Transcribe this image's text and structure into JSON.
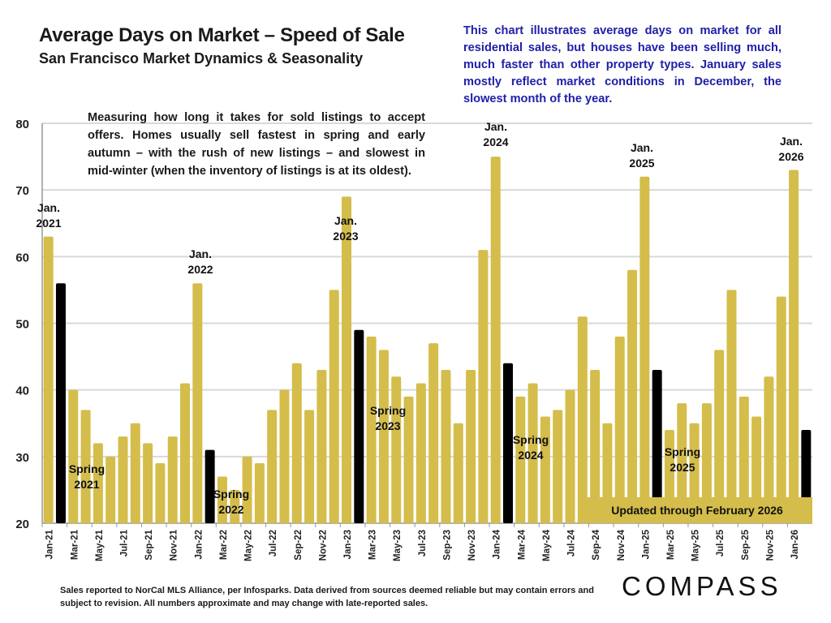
{
  "header": {
    "title": "Average Days on Market – Speed of Sale",
    "subtitle": "San Francisco Market Dynamics & Seasonality",
    "blue_note": "This chart illustrates average days on market for all residential sales, but houses have been selling much, much faster than other property types. January sales mostly reflect market conditions in December, the slowest month of the year.",
    "description": "Measuring how long it takes for sold listings to accept offers. Homes usually sell fastest in spring and early autumn – with the rush of new listings – and slowest in mid-winter (when the inventory of listings is at its oldest)."
  },
  "footer": {
    "source": "Sales reported to NorCal MLS Alliance, per Infosparks. Data derived from sources deemed reliable but may contain errors and subject to revision. All numbers approximate and may change with late-reported sales.",
    "logo": "COMPASS"
  },
  "colors": {
    "bar": "#d4bd4a",
    "highlight": "#000000",
    "note": "#2020a8",
    "grid": "#d9d9d9"
  },
  "chart_data": {
    "type": "bar",
    "title": "Average Days on Market – Speed of Sale",
    "xlabel": "",
    "ylabel": "",
    "ylim": [
      20,
      80
    ],
    "yticks": [
      20,
      30,
      40,
      50,
      60,
      70,
      80
    ],
    "grid": true,
    "categories": [
      "Jan-21",
      "Feb-21",
      "Mar-21",
      "Apr-21",
      "May-21",
      "Jun-21",
      "Jul-21",
      "Aug-21",
      "Sep-21",
      "Oct-21",
      "Nov-21",
      "Dec-21",
      "Jan-22",
      "Feb-22",
      "Mar-22",
      "Apr-22",
      "May-22",
      "Jun-22",
      "Jul-22",
      "Aug-22",
      "Sep-22",
      "Oct-22",
      "Nov-22",
      "Dec-22",
      "Jan-23",
      "Feb-23",
      "Mar-23",
      "Apr-23",
      "May-23",
      "Jun-23",
      "Jul-23",
      "Aug-23",
      "Sep-23",
      "Oct-23",
      "Nov-23",
      "Dec-23",
      "Jan-24",
      "Feb-24",
      "Mar-24",
      "Apr-24",
      "May-24",
      "Jun-24",
      "Jul-24",
      "Aug-24",
      "Sep-24",
      "Oct-24",
      "Nov-24",
      "Dec-24",
      "Jan-25",
      "Feb-25",
      "Mar-25",
      "Apr-25",
      "May-25",
      "Jun-25",
      "Jul-25",
      "Aug-25",
      "Sep-25",
      "Oct-25",
      "Nov-25",
      "Dec-25",
      "Jan-26",
      "Feb-26"
    ],
    "values": [
      63,
      56,
      40,
      37,
      32,
      30,
      33,
      35,
      32,
      29,
      33,
      41,
      56,
      31,
      27,
      25,
      30,
      29,
      37,
      40,
      44,
      37,
      43,
      55,
      69,
      49,
      48,
      46,
      42,
      39,
      41,
      47,
      43,
      35,
      43,
      61,
      75,
      44,
      39,
      41,
      36,
      37,
      40,
      51,
      43,
      35,
      48,
      58,
      72,
      43,
      34,
      38,
      35,
      38,
      46,
      55,
      39,
      36,
      42,
      54,
      73,
      34
    ],
    "highlighted": [
      "Feb-21",
      "Feb-22",
      "Feb-23",
      "Feb-24",
      "Feb-25",
      "Feb-26"
    ],
    "annotations": {
      "jan2021": [
        "Jan.",
        "2021"
      ],
      "jan2022": [
        "Jan.",
        "2022"
      ],
      "jan2023": [
        "Jan.",
        "2023"
      ],
      "jan2024": [
        "Jan.",
        "2024"
      ],
      "jan2025": [
        "Jan.",
        "2025"
      ],
      "jan2026": [
        "Jan.",
        "2026"
      ],
      "spring2021": [
        "Spring",
        "2021"
      ],
      "spring2022": [
        "Spring",
        "2022"
      ],
      "spring2023": [
        "Spring",
        "2023"
      ],
      "spring2024": [
        "Spring",
        "2024"
      ],
      "spring2025": [
        "Spring",
        "2025"
      ],
      "updated": "Updated through February 2026"
    }
  }
}
